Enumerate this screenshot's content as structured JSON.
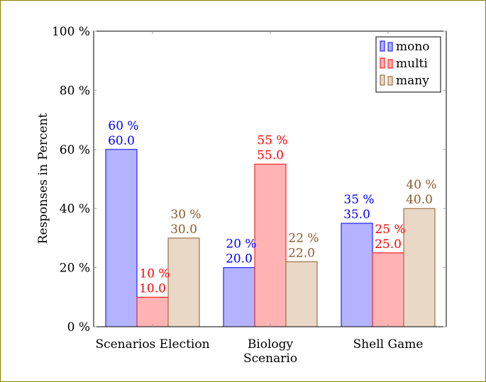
{
  "chart_data": {
    "type": "bar",
    "categories": [
      [
        "Scenarios Election"
      ],
      [
        "Biology",
        "Scenario"
      ],
      [
        "Shell Game"
      ]
    ],
    "series": [
      {
        "name": "mono",
        "values": [
          60,
          20,
          35
        ],
        "fill": "#b3b3ff",
        "stroke": "#0000ff",
        "label_color": "#0000ff"
      },
      {
        "name": "multi",
        "values": [
          10,
          55,
          25
        ],
        "fill": "#ffb3b3",
        "stroke": "#ff0000",
        "label_color": "#ff0000"
      },
      {
        "name": "many",
        "values": [
          30,
          22,
          40
        ],
        "fill": "#ead8c6",
        "stroke": "#8b5a2b",
        "label_color": "#8b5a2b"
      }
    ],
    "ylabel": "Responses in Percent",
    "xlabel": "",
    "ylim": [
      0,
      100
    ],
    "yticks": [
      0,
      20,
      40,
      60,
      80,
      100
    ],
    "ytick_labels": [
      "0 %",
      "20 %",
      "40 %",
      "60 %",
      "80 %",
      "100 %"
    ],
    "percent_suffix": " %",
    "legend_position": "top-right",
    "grid": false
  }
}
